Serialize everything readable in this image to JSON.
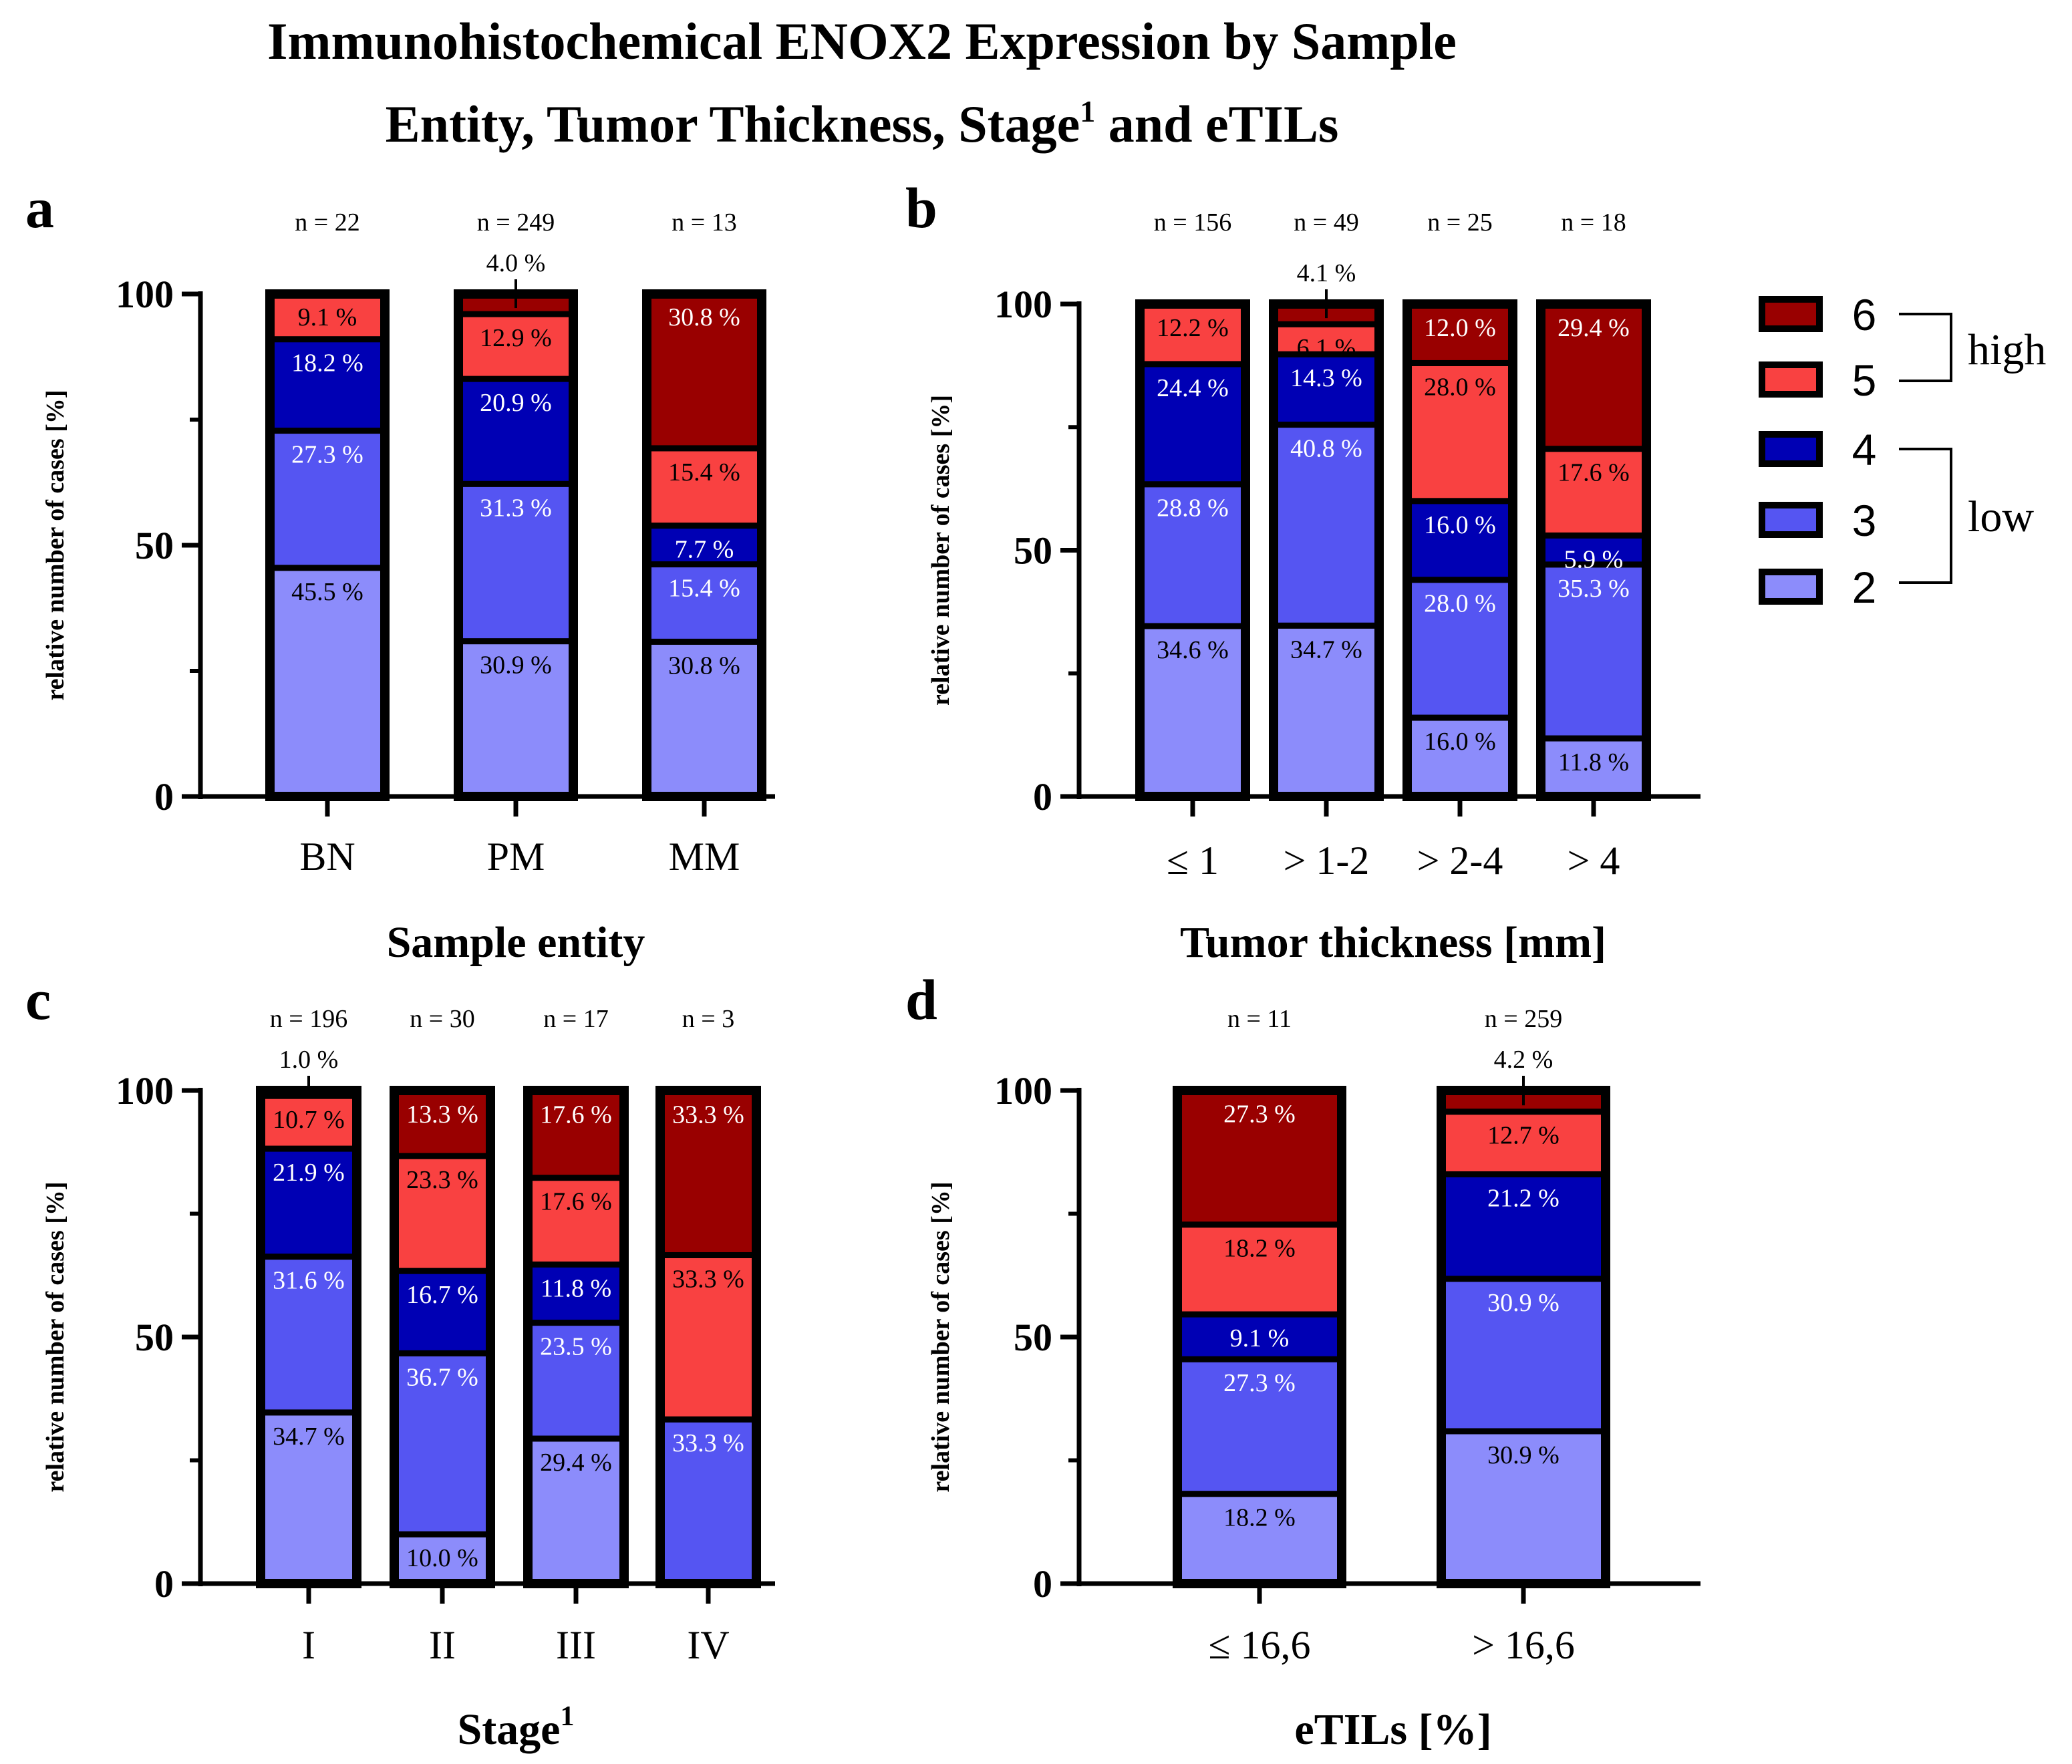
{
  "title_line1": "Immunohistochemical ENOX2 Expression by Sample",
  "title_line2_main": "Entity, Tumor Thickness, Stage",
  "title_line2_sup": "1",
  "title_line2_end": " and eTILs",
  "legend": {
    "entries": [
      {
        "label": "6",
        "color": "#990000"
      },
      {
        "label": "5",
        "color": "#f94141"
      },
      {
        "label": "4",
        "color": "#0000b4"
      },
      {
        "label": "3",
        "color": "#5555f2"
      },
      {
        "label": "2",
        "color": "#8c8cfb"
      }
    ],
    "high_label": "high",
    "low_label": "low"
  },
  "chart_data": [
    {
      "panel": "a",
      "type": "bar",
      "stacked": true,
      "ylabel": "relative number of cases [%]",
      "xlabel": "Sample entity",
      "xlabel_sup": "",
      "ylim": [
        0,
        100
      ],
      "yticks": [
        "0",
        "50",
        "100"
      ],
      "categories": [
        "BN",
        "PM",
        "MM"
      ],
      "n_labels": [
        "n = 22",
        "n = 249",
        "n = 13"
      ],
      "series": [
        {
          "name": "2",
          "values": [
            45.5,
            30.9,
            30.8
          ],
          "labels": [
            "45.5 %",
            "30.9 %",
            "30.8 %"
          ]
        },
        {
          "name": "3",
          "values": [
            27.3,
            31.3,
            15.4
          ],
          "labels": [
            "27.3 %",
            "31.3 %",
            "15.4 %"
          ]
        },
        {
          "name": "4",
          "values": [
            18.2,
            20.9,
            7.7
          ],
          "labels": [
            "18.2 %",
            "20.9 %",
            "7.7 %"
          ]
        },
        {
          "name": "5",
          "values": [
            9.1,
            12.9,
            15.4
          ],
          "labels": [
            "9.1 %",
            "12.9 %",
            "15.4 %"
          ]
        },
        {
          "name": "6",
          "values": [
            0,
            4.0,
            30.8
          ],
          "labels": [
            "",
            "4.0 %",
            "30.8 %"
          ]
        }
      ]
    },
    {
      "panel": "b",
      "type": "bar",
      "stacked": true,
      "ylabel": "relative number of cases [%]",
      "xlabel": "Tumor thickness [mm]",
      "xlabel_sup": "",
      "ylim": [
        0,
        100
      ],
      "yticks": [
        "0",
        "50",
        "100"
      ],
      "categories": [
        "≤ 1",
        "> 1-2",
        "> 2-4",
        "> 4"
      ],
      "n_labels": [
        "n = 156",
        "n = 49",
        "n = 25",
        "n = 18"
      ],
      "series": [
        {
          "name": "2",
          "values": [
            34.6,
            34.7,
            16.0,
            11.8
          ],
          "labels": [
            "34.6 %",
            "34.7 %",
            "16.0 %",
            "11.8 %"
          ]
        },
        {
          "name": "3",
          "values": [
            28.8,
            40.8,
            28.0,
            35.3
          ],
          "labels": [
            "28.8 %",
            "40.8 %",
            "28.0 %",
            "35.3 %"
          ]
        },
        {
          "name": "4",
          "values": [
            24.4,
            14.3,
            16.0,
            5.9
          ],
          "labels": [
            "24.4 %",
            "14.3 %",
            "16.0 %",
            "5.9 %"
          ]
        },
        {
          "name": "5",
          "values": [
            12.2,
            6.1,
            28.0,
            17.6
          ],
          "labels": [
            "12.2 %",
            "6.1 %",
            "28.0 %",
            "17.6 %"
          ]
        },
        {
          "name": "6",
          "values": [
            0,
            4.1,
            12.0,
            29.4
          ],
          "labels": [
            "",
            "4.1 %",
            "12.0 %",
            "29.4 %"
          ]
        }
      ]
    },
    {
      "panel": "c",
      "type": "bar",
      "stacked": true,
      "ylabel": "relative number of cases [%]",
      "xlabel": "Stage",
      "xlabel_sup": "1",
      "ylim": [
        0,
        100
      ],
      "yticks": [
        "0",
        "50",
        "100"
      ],
      "categories": [
        "I",
        "II",
        "III",
        "IV"
      ],
      "n_labels": [
        "n = 196",
        "n = 30",
        "n = 17",
        "n = 3"
      ],
      "series": [
        {
          "name": "2",
          "values": [
            34.7,
            10.0,
            29.4,
            0
          ],
          "labels": [
            "34.7 %",
            "10.0 %",
            "29.4 %",
            ""
          ]
        },
        {
          "name": "3",
          "values": [
            31.6,
            36.7,
            23.5,
            33.3
          ],
          "labels": [
            "31.6 %",
            "36.7 %",
            "23.5 %",
            "33.3 %"
          ]
        },
        {
          "name": "4",
          "values": [
            21.9,
            16.7,
            11.8,
            0
          ],
          "labels": [
            "21.9 %",
            "16.7 %",
            "11.8 %",
            ""
          ]
        },
        {
          "name": "5",
          "values": [
            10.7,
            23.3,
            17.6,
            33.3
          ],
          "labels": [
            "10.7 %",
            "23.3 %",
            "17.6 %",
            "33.3 %"
          ]
        },
        {
          "name": "6",
          "values": [
            1.0,
            13.3,
            17.6,
            33.3
          ],
          "labels": [
            "1.0 %",
            "13.3 %",
            "17.6 %",
            "33.3 %"
          ]
        }
      ]
    },
    {
      "panel": "d",
      "type": "bar",
      "stacked": true,
      "ylabel": "relative number of cases [%]",
      "xlabel": "eTILs [%]",
      "xlabel_sup": "",
      "ylim": [
        0,
        100
      ],
      "yticks": [
        "0",
        "50",
        "100"
      ],
      "categories": [
        "≤ 16,6",
        "> 16,6"
      ],
      "n_labels": [
        "n = 11",
        "n = 259"
      ],
      "series": [
        {
          "name": "2",
          "values": [
            18.2,
            30.9
          ],
          "labels": [
            "18.2 %",
            "30.9 %"
          ]
        },
        {
          "name": "3",
          "values": [
            27.3,
            30.9
          ],
          "labels": [
            "27.3 %",
            "30.9 %"
          ]
        },
        {
          "name": "4",
          "values": [
            9.1,
            21.2
          ],
          "labels": [
            "9.1 %",
            "21.2 %"
          ]
        },
        {
          "name": "5",
          "values": [
            18.2,
            12.7
          ],
          "labels": [
            "18.2 %",
            "12.7 %"
          ]
        },
        {
          "name": "6",
          "values": [
            27.3,
            4.2
          ],
          "labels": [
            "27.3 %",
            "4.2 %"
          ]
        }
      ]
    }
  ]
}
